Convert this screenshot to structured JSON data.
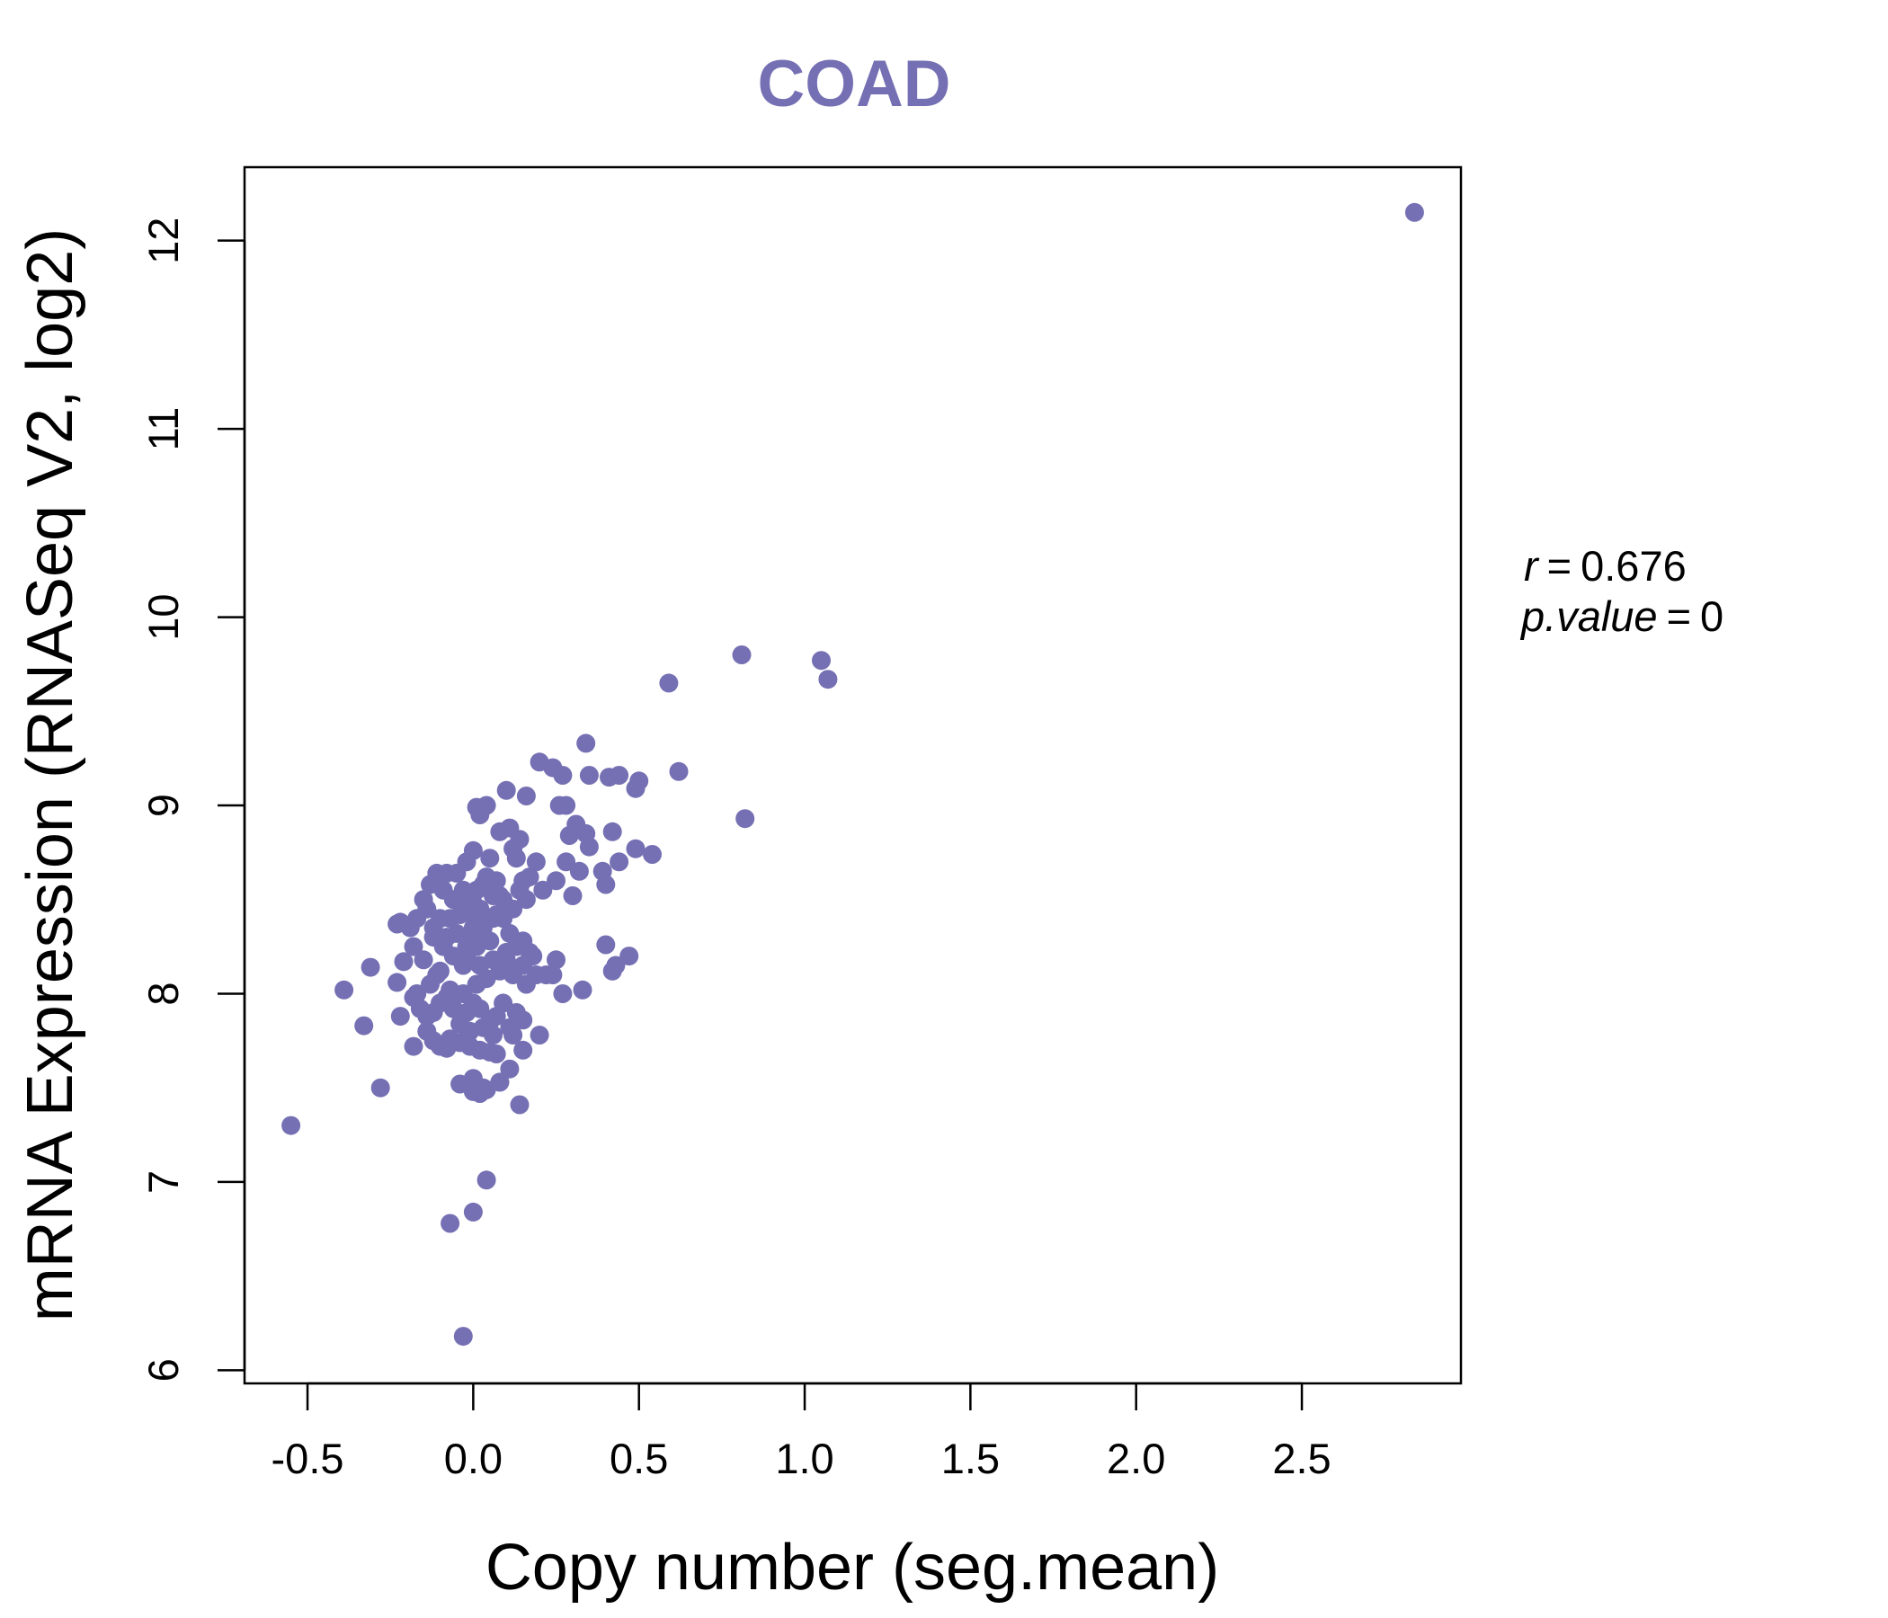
{
  "chart_data": {
    "type": "scatter",
    "title": "COAD",
    "xlabel": "Copy number (seg.mean)",
    "ylabel": "mRNA Expression (RNASeq V2, log2)",
    "xlim": [
      -0.69,
      2.98
    ],
    "ylim": [
      5.93,
      12.39
    ],
    "x_ticks": [
      -0.5,
      0.0,
      0.5,
      1.0,
      1.5,
      2.0,
      2.5
    ],
    "x_tick_labels": [
      "-0.5",
      "0.0",
      "0.5",
      "1.0",
      "1.5",
      "2.0",
      "2.5"
    ],
    "y_ticks": [
      6,
      7,
      8,
      9,
      10,
      11,
      12
    ],
    "y_tick_labels": [
      "6",
      "7",
      "8",
      "9",
      "10",
      "11",
      "12"
    ],
    "colors": {
      "points": "#7570b3",
      "title": "#7570b3",
      "axis": "#000000"
    },
    "annotation": {
      "r_label": "r",
      "r_value": "0.676",
      "p_label": "p.value",
      "p_value": "0"
    },
    "x": [
      2.84,
      0.81,
      1.05,
      1.07,
      0.59,
      0.62,
      0.82,
      0.34,
      0.2,
      0.24,
      0.35,
      0.27,
      0.41,
      0.44,
      0.5,
      0.49,
      0.16,
      0.1,
      0.26,
      0.28,
      0.04,
      0.01,
      0.02,
      0.31,
      0.34,
      0.42,
      0.29,
      0.11,
      0.08,
      0.14,
      0.54,
      0.49,
      0.35,
      0.44,
      0.28,
      0.32,
      0.39,
      0.4,
      0.3,
      0.25,
      0.19,
      0.17,
      0.21,
      0.15,
      0.12,
      0.13,
      0.05,
      0.0,
      -0.02,
      -0.05,
      -0.08,
      -0.11,
      -0.13,
      -0.15,
      -0.09,
      -0.06,
      -0.03,
      0.01,
      0.03,
      0.06,
      0.08,
      0.02,
      -0.01,
      0.04,
      0.07,
      0.09,
      -0.04,
      -0.07,
      -0.1,
      -0.12,
      -0.14,
      -0.17,
      -0.22,
      -0.19,
      -0.23,
      -0.18,
      -0.08,
      -0.05,
      0.0,
      0.03,
      0.05,
      0.01,
      -0.02,
      0.02,
      0.06,
      0.1,
      0.13,
      0.15,
      0.18,
      0.11,
      0.09,
      0.12,
      0.16,
      0.14,
      0.07,
      0.04,
      -0.01,
      -0.03,
      -0.06,
      -0.09,
      -0.12,
      -0.1,
      -0.15,
      -0.21,
      -0.23,
      -0.17,
      -0.13,
      -0.11,
      -0.07,
      -0.03,
      0.01,
      0.04,
      0.08,
      0.1,
      0.12,
      0.15,
      0.17,
      0.22,
      0.25,
      0.24,
      0.27,
      0.33,
      0.4,
      0.43,
      0.42,
      0.47,
      0.19,
      0.16,
      -0.22,
      -0.18,
      -0.16,
      -0.14,
      -0.12,
      -0.1,
      -0.08,
      -0.06,
      -0.02,
      0.0,
      0.02,
      0.05,
      0.07,
      0.09,
      0.11,
      0.13,
      0.15,
      0.06,
      0.03,
      -0.01,
      -0.04,
      -0.07,
      -0.1,
      -0.31,
      -0.39,
      -0.33,
      -0.28,
      -0.18,
      -0.14,
      -0.12,
      -0.08,
      -0.04,
      -0.01,
      0.02,
      0.05,
      0.08,
      0.12,
      0.14,
      -0.04,
      0.0,
      0.03,
      -0.55,
      0.04,
      0.0,
      -0.07,
      -0.03,
      0.0,
      0.02,
      0.04,
      0.08,
      0.11,
      0.15,
      0.2,
      0.07,
      -0.02,
      0.03,
      0.01,
      -0.03,
      0.06,
      0.02,
      0.0,
      0.03,
      -0.01,
      0.01
    ],
    "y": [
      12.15,
      9.8,
      9.77,
      9.67,
      9.65,
      9.18,
      8.93,
      9.33,
      9.23,
      9.2,
      9.16,
      9.16,
      9.15,
      9.16,
      9.13,
      9.09,
      9.05,
      9.08,
      9.0,
      9.0,
      9.0,
      8.99,
      8.95,
      8.9,
      8.85,
      8.86,
      8.84,
      8.88,
      8.86,
      8.82,
      8.74,
      8.77,
      8.78,
      8.7,
      8.7,
      8.65,
      8.65,
      8.58,
      8.52,
      8.6,
      8.7,
      8.62,
      8.55,
      8.6,
      8.77,
      8.72,
      8.72,
      8.76,
      8.7,
      8.64,
      8.64,
      8.64,
      8.58,
      8.5,
      8.55,
      8.5,
      8.48,
      8.55,
      8.58,
      8.52,
      8.52,
      8.45,
      8.44,
      8.4,
      8.42,
      8.5,
      8.42,
      8.4,
      8.4,
      8.35,
      8.45,
      8.4,
      8.38,
      8.35,
      8.37,
      8.25,
      8.3,
      8.32,
      8.35,
      8.3,
      8.28,
      8.25,
      8.2,
      8.15,
      8.18,
      8.22,
      8.25,
      8.28,
      8.2,
      8.32,
      8.4,
      8.45,
      8.5,
      8.55,
      8.6,
      8.62,
      8.3,
      8.15,
      8.2,
      8.25,
      8.3,
      8.12,
      8.18,
      8.17,
      8.06,
      8.0,
      8.05,
      8.1,
      8.02,
      8.0,
      8.05,
      8.08,
      8.12,
      8.18,
      8.1,
      8.15,
      8.22,
      8.1,
      8.18,
      8.1,
      8.0,
      8.02,
      8.26,
      8.15,
      8.12,
      8.2,
      8.1,
      8.05,
      7.88,
      7.98,
      7.92,
      7.88,
      7.9,
      7.95,
      7.98,
      7.92,
      7.9,
      7.95,
      7.92,
      7.85,
      7.88,
      7.95,
      7.82,
      7.9,
      7.86,
      7.78,
      7.82,
      7.8,
      7.84,
      7.76,
      7.72,
      8.14,
      8.02,
      7.83,
      7.5,
      7.72,
      7.8,
      7.75,
      7.71,
      7.74,
      7.72,
      7.7,
      7.69,
      7.53,
      7.78,
      7.41,
      7.52,
      7.55,
      7.5,
      7.3,
      7.01,
      6.84,
      6.78,
      6.18,
      7.48,
      7.47,
      7.49,
      7.53,
      7.6,
      7.7,
      7.78,
      7.68,
      8.25,
      8.35,
      8.45,
      8.55,
      8.4,
      8.35,
      8.48,
      8.38,
      8.28,
      8.33
    ]
  }
}
